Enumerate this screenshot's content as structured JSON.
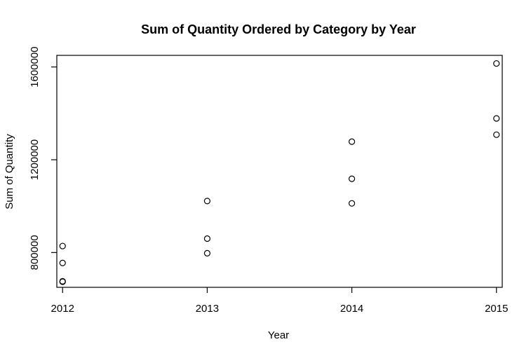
{
  "chart_data": {
    "type": "scatter",
    "title": "Sum of Quantity Ordered by Category by Year",
    "xlabel": "Year",
    "ylabel": "Sum of Quantity",
    "x_ticks": [
      2012,
      2013,
      2014,
      2015
    ],
    "y_ticks": [
      800000,
      1200000,
      1600000
    ],
    "xlim": [
      2011.96,
      2015.04
    ],
    "ylim": [
      650000,
      1650000
    ],
    "grid": false,
    "points": [
      {
        "x": 2012,
        "y": 828000
      },
      {
        "x": 2012,
        "y": 755000
      },
      {
        "x": 2012,
        "y": 676000
      },
      {
        "x": 2012,
        "y": 674000
      },
      {
        "x": 2013,
        "y": 1022000
      },
      {
        "x": 2013,
        "y": 860000
      },
      {
        "x": 2013,
        "y": 797000
      },
      {
        "x": 2014,
        "y": 1278000
      },
      {
        "x": 2014,
        "y": 1118000
      },
      {
        "x": 2014,
        "y": 1012000
      },
      {
        "x": 2015,
        "y": 1615000
      },
      {
        "x": 2015,
        "y": 1378000
      },
      {
        "x": 2015,
        "y": 1308000
      }
    ]
  }
}
